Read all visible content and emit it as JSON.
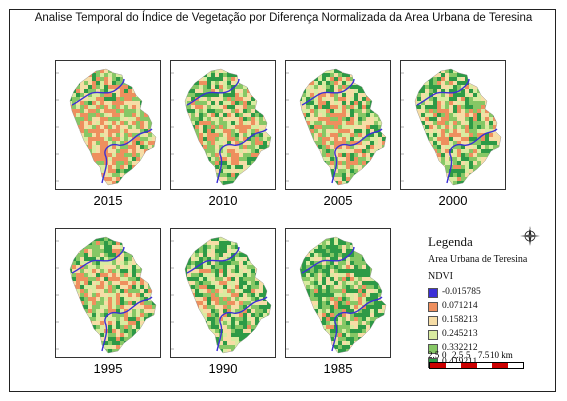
{
  "title": "Analise Temporal do Índice de Vegetação por Diferença Normalizada da Area Urbana de Teresina",
  "panels": [
    {
      "year": "2015"
    },
    {
      "year": "2010"
    },
    {
      "year": "2005"
    },
    {
      "year": "2000"
    },
    {
      "year": "1995"
    },
    {
      "year": "1990"
    },
    {
      "year": "1985"
    }
  ],
  "legend": {
    "title": "Legenda",
    "area_label": "Area Urbana de Teresina",
    "ndvi_label": "NDVI",
    "items": [
      {
        "label": "-0.015785",
        "color": "#3b2fd6"
      },
      {
        "label": "0.071214",
        "color": "#ee8f5e"
      },
      {
        "label": "0.158213",
        "color": "#f6dda6"
      },
      {
        "label": "0.245213",
        "color": "#d9eba0"
      },
      {
        "label": "0.332212",
        "color": "#86c765"
      },
      {
        "label": "0.419211",
        "color": "#2d9a46"
      }
    ]
  },
  "scale": {
    "labels": [
      "2.5",
      "0",
      "2.5",
      "5",
      "7.5",
      "10 km"
    ]
  },
  "north_arrow": {
    "icon": "compass-rose-icon"
  }
}
